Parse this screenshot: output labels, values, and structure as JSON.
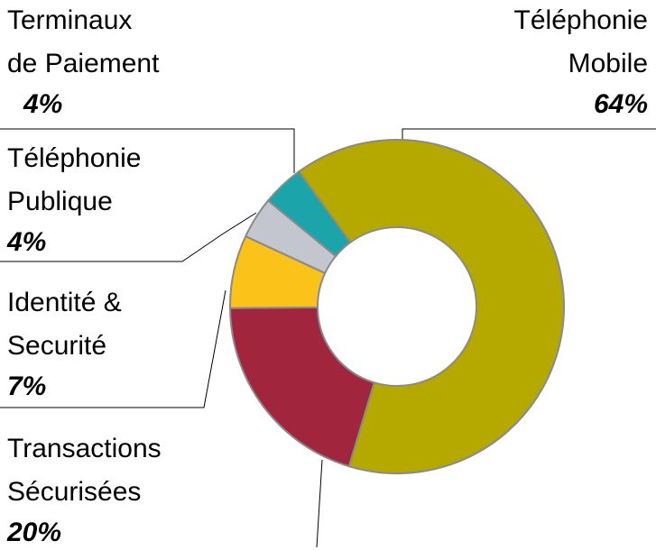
{
  "chart_data": {
    "type": "donut",
    "categories": [
      [
        "Téléphonie",
        "Mobile"
      ],
      [
        "Transactions",
        "Sécurisées"
      ],
      [
        "Identité &",
        "Securité"
      ],
      [
        "Téléphonie",
        "Publique"
      ],
      [
        "Terminaux",
        "de Paiement"
      ]
    ],
    "values": [
      64,
      20,
      7,
      4,
      4
    ],
    "value_labels": [
      "64%",
      "20%",
      "7%",
      "4%",
      "4%"
    ],
    "colors": [
      "#b5a900",
      "#a1263d",
      "#fbc21a",
      "#c3c5cf",
      "#1ba5aa"
    ],
    "start_angle": -36
  }
}
